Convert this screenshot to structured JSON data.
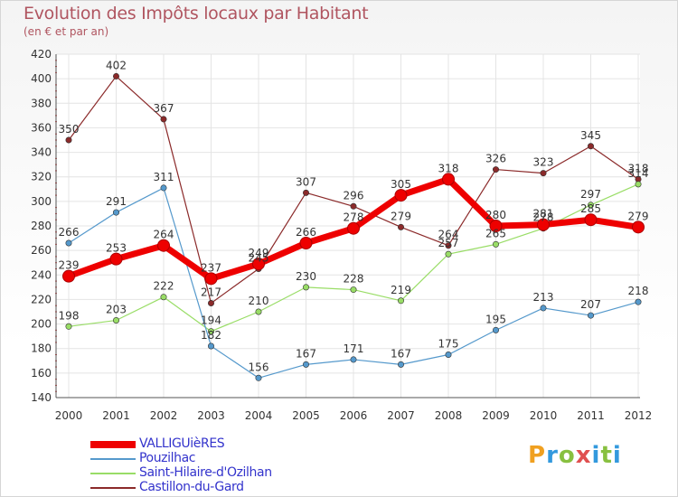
{
  "chart_data": {
    "type": "line",
    "title": "Evolution des Impôts locaux par Habitant",
    "subtitle": "(en € et par an)",
    "xlabel": "",
    "ylabel": "",
    "categories": [
      "2000",
      "2001",
      "2002",
      "2003",
      "2004",
      "2005",
      "2006",
      "2007",
      "2008",
      "2009",
      "2010",
      "2011",
      "2012"
    ],
    "ylim": [
      140,
      420
    ],
    "yticks": [
      140,
      160,
      180,
      200,
      220,
      240,
      260,
      280,
      300,
      320,
      340,
      360,
      380,
      400,
      420
    ],
    "series": [
      {
        "name": "Castillon-du-Gard",
        "color": "#8b2a2a",
        "values": [
          350,
          402,
          367,
          217,
          245,
          307,
          296,
          279,
          264,
          326,
          323,
          345,
          318
        ]
      },
      {
        "name": "Saint-Hilaire-d'Ozilhan",
        "color": "#99dd66",
        "values": [
          198,
          203,
          222,
          194,
          210,
          230,
          228,
          219,
          257,
          265,
          278,
          297,
          314
        ]
      },
      {
        "name": "Pouzilhac",
        "color": "#5599cc",
        "values": [
          266,
          291,
          311,
          182,
          156,
          167,
          171,
          167,
          175,
          195,
          213,
          207,
          218
        ]
      },
      {
        "name": "VALLIGUièRES",
        "color": "#ee0000",
        "values": [
          239,
          253,
          264,
          237,
          249,
          266,
          278,
          305,
          318,
          280,
          281,
          285,
          279
        ]
      }
    ],
    "point_labels": {
      "Castillon-du-Gard": [
        "350",
        "402",
        "367",
        "217",
        "245",
        "307",
        "296",
        "279",
        "264",
        "326",
        "323",
        "345",
        "318"
      ],
      "Saint-Hilaire-d'Ozilhan": [
        "198",
        "203",
        "222",
        "194",
        "210",
        "230",
        "228",
        "219",
        "257",
        "265",
        "278",
        "297",
        "314"
      ],
      "Pouzilhac": [
        "266",
        "291",
        "311",
        "182",
        "156",
        "167",
        "171",
        "167",
        "175",
        "195",
        "213",
        "207",
        "218"
      ],
      "VALLIGUièRES": [
        "239",
        "253",
        "264",
        "237",
        "249",
        "266",
        "278",
        "305",
        "318",
        "280",
        "281",
        "285",
        "279"
      ]
    },
    "legend": [
      "VALLIGUièRES",
      "Pouzilhac",
      "Saint-Hilaire-d'Ozilhan",
      "Castillon-du-Gard"
    ],
    "legend_position": "bottom-left",
    "grid": true
  },
  "brand": {
    "logo_text": "Proxiti"
  }
}
